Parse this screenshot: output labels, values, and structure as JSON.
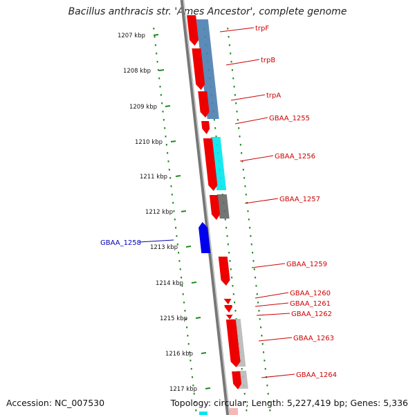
{
  "title": "Bacillus anthracis str. 'Ames Ancestor', complete genome",
  "footer": {
    "accession": "Accession: NC_007530",
    "topology": "Topology: circular; Length: 5,227,419 bp; Genes: 5,336"
  },
  "colors": {
    "backbone": "#777777",
    "tick": "#1f8a1f",
    "forward_label": "#cc0000",
    "reverse_label": "#0000bb",
    "gene_red": "#ee0000",
    "gene_blue": "#0000ee",
    "steel_blue": "#4a7eb0",
    "cyan": "#00e5ee",
    "dark_gray": "#666666",
    "light_gray": "#b8b8b8"
  },
  "ruler": {
    "labels": [
      "1207 kbp",
      "1208 kbp",
      "1209 kbp",
      "1210 kbp",
      "1211 kbp",
      "1212 kbp",
      "1213 kbp",
      "1214 kbp",
      "1215 kbp",
      "1216 kbp",
      "1217 kbp"
    ]
  },
  "genes": [
    {
      "name": "trpF",
      "strand": "forward"
    },
    {
      "name": "trpB",
      "strand": "forward"
    },
    {
      "name": "trpA",
      "strand": "forward"
    },
    {
      "name": "GBAA_1255",
      "strand": "forward"
    },
    {
      "name": "GBAA_1256",
      "strand": "forward"
    },
    {
      "name": "GBAA_1257",
      "strand": "forward"
    },
    {
      "name": "GBAA_1258",
      "strand": "reverse"
    },
    {
      "name": "GBAA_1259",
      "strand": "forward"
    },
    {
      "name": "GBAA_1260",
      "strand": "forward"
    },
    {
      "name": "GBAA_1261",
      "strand": "forward"
    },
    {
      "name": "GBAA_1262",
      "strand": "forward"
    },
    {
      "name": "GBAA_1263",
      "strand": "forward"
    },
    {
      "name": "GBAA_1264",
      "strand": "forward"
    }
  ]
}
